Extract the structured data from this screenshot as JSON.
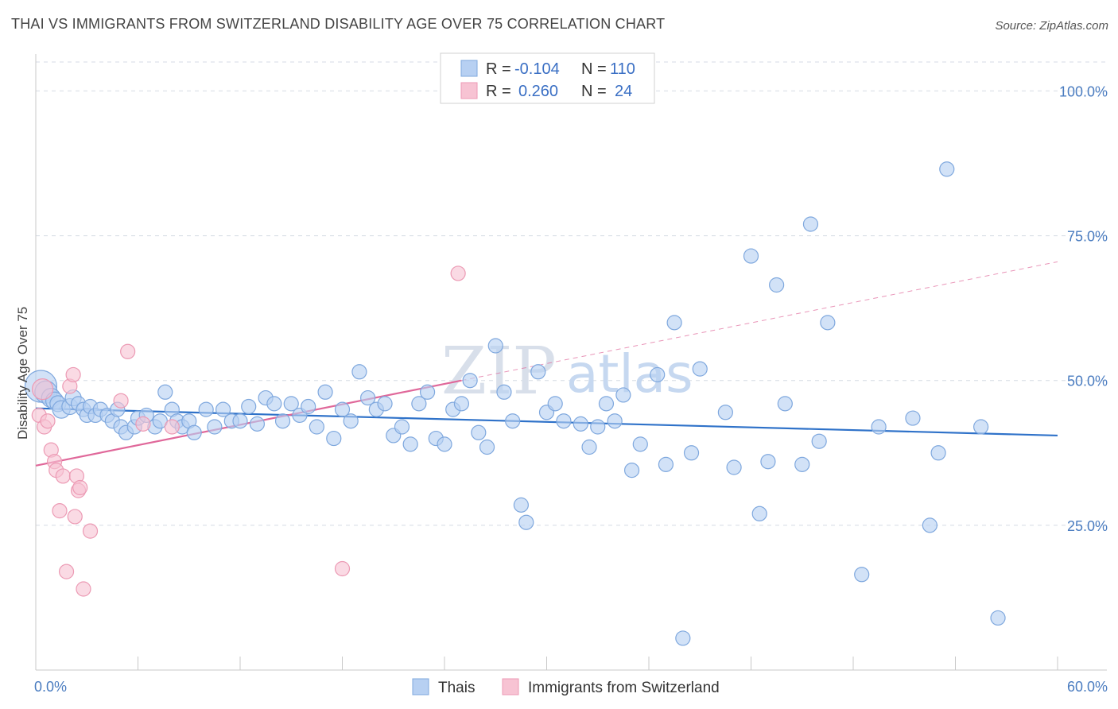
{
  "header": {
    "title": "THAI VS IMMIGRANTS FROM SWITZERLAND DISABILITY AGE OVER 75 CORRELATION CHART",
    "source": "Source: ZipAtlas.com"
  },
  "watermark": {
    "zip": "ZIP",
    "atlas": "atlas"
  },
  "colors": {
    "blue_fill": "#b7d0f2",
    "blue_stroke": "#7fa8de",
    "blue_line": "#2f72c9",
    "pink_fill": "#f7c3d3",
    "pink_stroke": "#ec9ab4",
    "pink_line": "#e0689a",
    "tick_text": "#4a7cc0",
    "grid": "#d5dbe4"
  },
  "legend": {
    "rows": [
      {
        "r_label": "R =",
        "r_value": "-0.104",
        "n_label": "N =",
        "n_value": "110"
      },
      {
        "r_label": "R =",
        "r_value": "0.260",
        "n_label": "N =",
        "n_value": "24"
      }
    ]
  },
  "chart_data": {
    "type": "scatter",
    "title": "THAI VS IMMIGRANTS FROM SWITZERLAND DISABILITY AGE OVER 75 CORRELATION CHART",
    "xlabel": "",
    "ylabel": "Disability Age Over 75",
    "xlim": [
      0,
      60
    ],
    "ylim": [
      0,
      105
    ],
    "x_tick_labels": [
      "0.0%",
      "60.0%"
    ],
    "y_ticks": [
      25,
      50,
      75,
      100
    ],
    "y_tick_labels": [
      "25.0%",
      "50.0%",
      "75.0%",
      "100.0%"
    ],
    "grid": true,
    "legend_position": "top-center",
    "series": [
      {
        "name": "Thais",
        "r": -0.104,
        "n": 110,
        "trend": {
          "x": [
            0,
            60
          ],
          "y": [
            45.2,
            40.5
          ],
          "dashed_extension": false
        },
        "points": [
          [
            0.3,
            49,
            20
          ],
          [
            0.6,
            48,
            14
          ],
          [
            0.9,
            47,
            12
          ],
          [
            1.1,
            46.5,
            11
          ],
          [
            1.3,
            46,
            10
          ],
          [
            1.5,
            45,
            11
          ],
          [
            2.0,
            45.5,
            10
          ],
          [
            2.2,
            47,
            10
          ],
          [
            2.5,
            46,
            9
          ],
          [
            2.8,
            45,
            9
          ],
          [
            3.0,
            44,
            9
          ],
          [
            3.2,
            45.5,
            9
          ],
          [
            3.5,
            44,
            9
          ],
          [
            3.8,
            45,
            9
          ],
          [
            4.2,
            44,
            9
          ],
          [
            4.5,
            43,
            9
          ],
          [
            4.8,
            45,
            9
          ],
          [
            5.0,
            42,
            9
          ],
          [
            5.3,
            41,
            9
          ],
          [
            5.8,
            42,
            9
          ],
          [
            6.0,
            43.5,
            9
          ],
          [
            6.5,
            44,
            9
          ],
          [
            7.0,
            42,
            9
          ],
          [
            7.3,
            43,
            9
          ],
          [
            7.6,
            48,
            9
          ],
          [
            8.0,
            45,
            9
          ],
          [
            8.3,
            43,
            9
          ],
          [
            8.6,
            42,
            9
          ],
          [
            9.0,
            43,
            9
          ],
          [
            9.3,
            41,
            9
          ],
          [
            10.0,
            45,
            9
          ],
          [
            10.5,
            42,
            9
          ],
          [
            11.0,
            45,
            9
          ],
          [
            11.5,
            43,
            9
          ],
          [
            12.0,
            43,
            9
          ],
          [
            12.5,
            45.5,
            9
          ],
          [
            13.0,
            42.5,
            9
          ],
          [
            13.5,
            47,
            9
          ],
          [
            14.0,
            46,
            9
          ],
          [
            14.5,
            43,
            9
          ],
          [
            15.0,
            46,
            9
          ],
          [
            15.5,
            44,
            9
          ],
          [
            16.0,
            45.5,
            9
          ],
          [
            16.5,
            42,
            9
          ],
          [
            17.0,
            48,
            9
          ],
          [
            17.5,
            40,
            9
          ],
          [
            18.0,
            45,
            9
          ],
          [
            18.5,
            43,
            9
          ],
          [
            19.0,
            51.5,
            9
          ],
          [
            19.5,
            47,
            9
          ],
          [
            20.0,
            45,
            9
          ],
          [
            20.5,
            46,
            9
          ],
          [
            21.0,
            40.5,
            9
          ],
          [
            21.5,
            42,
            9
          ],
          [
            22.0,
            39,
            9
          ],
          [
            22.5,
            46,
            9
          ],
          [
            23.0,
            48,
            9
          ],
          [
            23.5,
            40,
            9
          ],
          [
            24.0,
            39,
            9
          ],
          [
            24.5,
            45,
            9
          ],
          [
            25.0,
            46,
            9
          ],
          [
            25.5,
            50,
            9
          ],
          [
            26.0,
            41,
            9
          ],
          [
            26.5,
            38.5,
            9
          ],
          [
            27.0,
            56,
            9
          ],
          [
            27.5,
            48,
            9
          ],
          [
            28.0,
            43,
            9
          ],
          [
            28.5,
            28.5,
            9
          ],
          [
            28.8,
            25.5,
            9
          ],
          [
            29.5,
            51.5,
            9
          ],
          [
            30.0,
            44.5,
            9
          ],
          [
            30.5,
            46,
            9
          ],
          [
            31.0,
            43,
            9
          ],
          [
            32.0,
            42.5,
            9
          ],
          [
            32.5,
            38.5,
            9
          ],
          [
            33.0,
            42,
            9
          ],
          [
            33.5,
            46,
            9
          ],
          [
            34.0,
            43,
            9
          ],
          [
            34.5,
            47.5,
            9
          ],
          [
            35.0,
            34.5,
            9
          ],
          [
            35.5,
            39,
            9
          ],
          [
            36.5,
            51,
            9
          ],
          [
            37.0,
            35.5,
            9
          ],
          [
            37.5,
            60,
            9
          ],
          [
            38.0,
            5.5,
            9
          ],
          [
            38.5,
            37.5,
            9
          ],
          [
            39.0,
            52,
            9
          ],
          [
            40.5,
            44.5,
            9
          ],
          [
            41.0,
            35,
            9
          ],
          [
            42.0,
            71.5,
            9
          ],
          [
            42.5,
            27,
            9
          ],
          [
            43.0,
            36,
            9
          ],
          [
            43.5,
            66.5,
            9
          ],
          [
            44.0,
            46,
            9
          ],
          [
            45.0,
            35.5,
            9
          ],
          [
            45.5,
            77,
            9
          ],
          [
            46.0,
            39.5,
            9
          ],
          [
            46.5,
            60,
            9
          ],
          [
            48.5,
            16.5,
            9
          ],
          [
            49.5,
            42,
            9
          ],
          [
            51.5,
            43.5,
            9
          ],
          [
            52.5,
            25,
            9
          ],
          [
            53.0,
            37.5,
            9
          ],
          [
            53.5,
            86.5,
            9
          ],
          [
            55.5,
            42,
            9
          ],
          [
            56.5,
            9,
            9
          ]
        ]
      },
      {
        "name": "Immigrants from Switzerland",
        "r": 0.26,
        "n": 24,
        "trend": {
          "x": [
            0,
            25
          ],
          "y": [
            35.3,
            50.0
          ],
          "dashed_to": [
            60,
            70.5
          ]
        },
        "points": [
          [
            0.2,
            44,
            9
          ],
          [
            0.4,
            48.5,
            13
          ],
          [
            0.5,
            42,
            9
          ],
          [
            0.7,
            43,
            9
          ],
          [
            0.9,
            38,
            9
          ],
          [
            1.1,
            36,
            9
          ],
          [
            1.2,
            34.5,
            9
          ],
          [
            1.4,
            27.5,
            9
          ],
          [
            1.6,
            33.5,
            9
          ],
          [
            1.8,
            17,
            9
          ],
          [
            2.0,
            49,
            9
          ],
          [
            2.2,
            51,
            9
          ],
          [
            2.3,
            26.5,
            9
          ],
          [
            2.4,
            33.5,
            9
          ],
          [
            2.5,
            31,
            9
          ],
          [
            2.6,
            31.5,
            9
          ],
          [
            2.8,
            14,
            9
          ],
          [
            3.2,
            24,
            9
          ],
          [
            5.0,
            46.5,
            9
          ],
          [
            5.4,
            55,
            9
          ],
          [
            6.3,
            42.5,
            9
          ],
          [
            8.0,
            42,
            9
          ],
          [
            18.0,
            17.5,
            9
          ],
          [
            24.8,
            68.5,
            9
          ]
        ]
      }
    ]
  }
}
